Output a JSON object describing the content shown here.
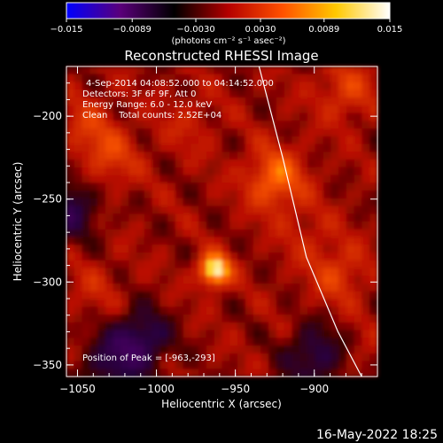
{
  "chart_data": {
    "type": "heatmap",
    "title": "Reconstructed RHESSI Image",
    "xlabel": "Heliocentric X (arcsec)",
    "ylabel": "Heliocentric Y (arcsec)",
    "xlim": [
      -1057,
      -860
    ],
    "ylim": [
      -357,
      -170
    ],
    "xticks": [
      -1050,
      -1000,
      -950,
      -900
    ],
    "xtick_labels": [
      "−1050",
      "−1000",
      "−950",
      "−900"
    ],
    "yticks": [
      -200,
      -250,
      -300,
      -350
    ],
    "ytick_labels": [
      "−200",
      "−250",
      "−300",
      "−350"
    ],
    "colorbar": {
      "range": [
        -0.015,
        0.015
      ],
      "ticks": [
        -0.015,
        -0.0089,
        -0.003,
        0.003,
        0.0089,
        0.015
      ],
      "tick_labels": [
        "−0.015",
        "−0.0089",
        "−0.0030",
        "0.0030",
        "0.0089",
        "0.015"
      ],
      "unit_label": "(photons cm⁻² s⁻¹ asec⁻²)",
      "colors": [
        "#0000ff",
        "#5a007a",
        "#000000",
        "#b40000",
        "#ff5000",
        "#ffc800",
        "#ffffff"
      ]
    },
    "annotations": [
      "4-Sep-2014 04:08:52.000 to 04:14:52.000",
      "Detectors: 3F 6F 9F, Att 0",
      "Energy Range: 6.0 - 12.0 keV",
      "Clean    Total counts: 2.52E+04"
    ],
    "peak_label": "Position of Peak = [-963,-293]",
    "peak": [
      -963,
      -293
    ],
    "hot_spots": [
      {
        "x": -963,
        "y": -293,
        "value": 0.015
      },
      {
        "x": -925,
        "y": -238,
        "value": 0.009
      },
      {
        "x": -1030,
        "y": -225,
        "value": 0.006
      },
      {
        "x": -880,
        "y": -185,
        "value": 0.006
      },
      {
        "x": -885,
        "y": -295,
        "value": 0.006
      },
      {
        "x": -1045,
        "y": -205,
        "value": 0.005
      },
      {
        "x": -980,
        "y": -205,
        "value": 0.004
      },
      {
        "x": -1040,
        "y": -305,
        "value": 0.004
      },
      {
        "x": -905,
        "y": -270,
        "value": 0.004
      },
      {
        "x": -870,
        "y": -345,
        "value": 0.003
      }
    ],
    "cold_regions": [
      {
        "x": -1055,
        "y": -255,
        "value": -0.004
      },
      {
        "x": -1010,
        "y": -335,
        "value": -0.005
      },
      {
        "x": -900,
        "y": -345,
        "value": -0.004
      },
      {
        "x": -1030,
        "y": -350,
        "value": -0.003
      }
    ],
    "limb_curve": [
      [
        -935,
        -165
      ],
      [
        -920,
        -225
      ],
      [
        -905,
        -285
      ],
      [
        -885,
        -330
      ],
      [
        -870,
        -357
      ]
    ],
    "timestamp": "16-May-2022 18:25"
  }
}
